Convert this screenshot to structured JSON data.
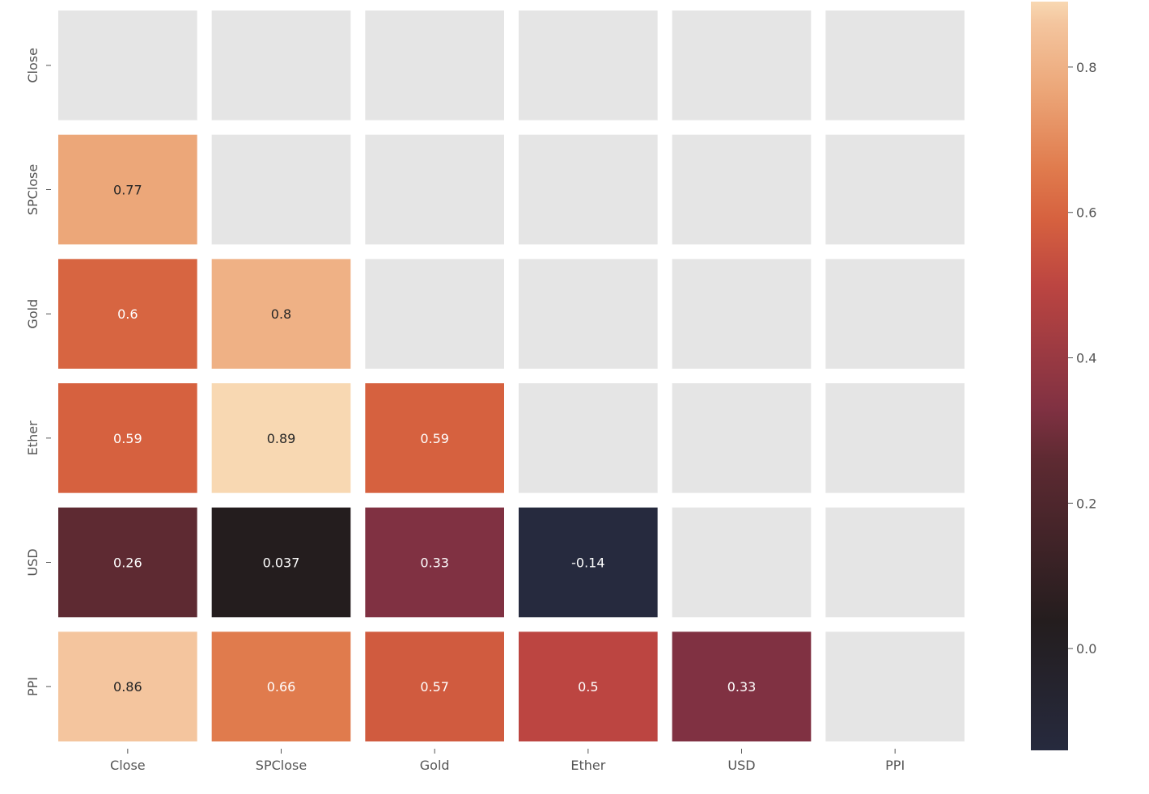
{
  "chart_data": {
    "type": "heatmap",
    "title": "",
    "xlabel": "",
    "ylabel": "",
    "x_categories": [
      "Close",
      "SPClose",
      "Gold",
      "Ether",
      "USD",
      "PPI"
    ],
    "y_categories": [
      "Close",
      "SPClose",
      "Gold",
      "Ether",
      "USD",
      "PPI"
    ],
    "mask": "upper-triangle-including-diagonal",
    "values": [
      [
        null,
        null,
        null,
        null,
        null,
        null
      ],
      [
        0.77,
        null,
        null,
        null,
        null,
        null
      ],
      [
        0.6,
        0.8,
        null,
        null,
        null,
        null
      ],
      [
        0.59,
        0.89,
        0.59,
        null,
        null,
        null
      ],
      [
        0.26,
        0.037,
        0.33,
        -0.14,
        null,
        null
      ],
      [
        0.86,
        0.66,
        0.57,
        0.5,
        0.33,
        null
      ]
    ],
    "labels": [
      [
        "",
        "",
        "",
        "",
        "",
        ""
      ],
      [
        "0.77",
        "",
        "",
        "",
        "",
        ""
      ],
      [
        "0.6",
        "0.8",
        "",
        "",
        "",
        ""
      ],
      [
        "0.59",
        "0.89",
        "0.59",
        "",
        "",
        ""
      ],
      [
        "0.26",
        "0.037",
        "0.33",
        "-0.14",
        "",
        ""
      ],
      [
        "0.86",
        "0.66",
        "0.57",
        "0.5",
        "0.33",
        ""
      ]
    ],
    "colorbar": {
      "vmin": -0.14,
      "vmax": 0.89,
      "ticks": [
        0.0,
        0.2,
        0.4,
        0.6,
        0.8
      ],
      "tick_labels": [
        "0.0",
        "0.2",
        "0.4",
        "0.6",
        "0.8"
      ]
    },
    "colors": {
      "masked_cell": "#e5e5e5",
      "cmap_stops": [
        {
          "v": -0.14,
          "c": "#262a3e"
        },
        {
          "v": 0.037,
          "c": "#241d1e"
        },
        {
          "v": 0.26,
          "c": "#5e2a32"
        },
        {
          "v": 0.33,
          "c": "#803142"
        },
        {
          "v": 0.5,
          "c": "#bc4541"
        },
        {
          "v": 0.59,
          "c": "#d6613f"
        },
        {
          "v": 0.66,
          "c": "#e07b4d"
        },
        {
          "v": 0.77,
          "c": "#eca779"
        },
        {
          "v": 0.86,
          "c": "#f4c59e"
        },
        {
          "v": 0.89,
          "c": "#f8d8b2"
        }
      ],
      "dark_text": "#262626",
      "light_text": "#ffffff"
    }
  }
}
